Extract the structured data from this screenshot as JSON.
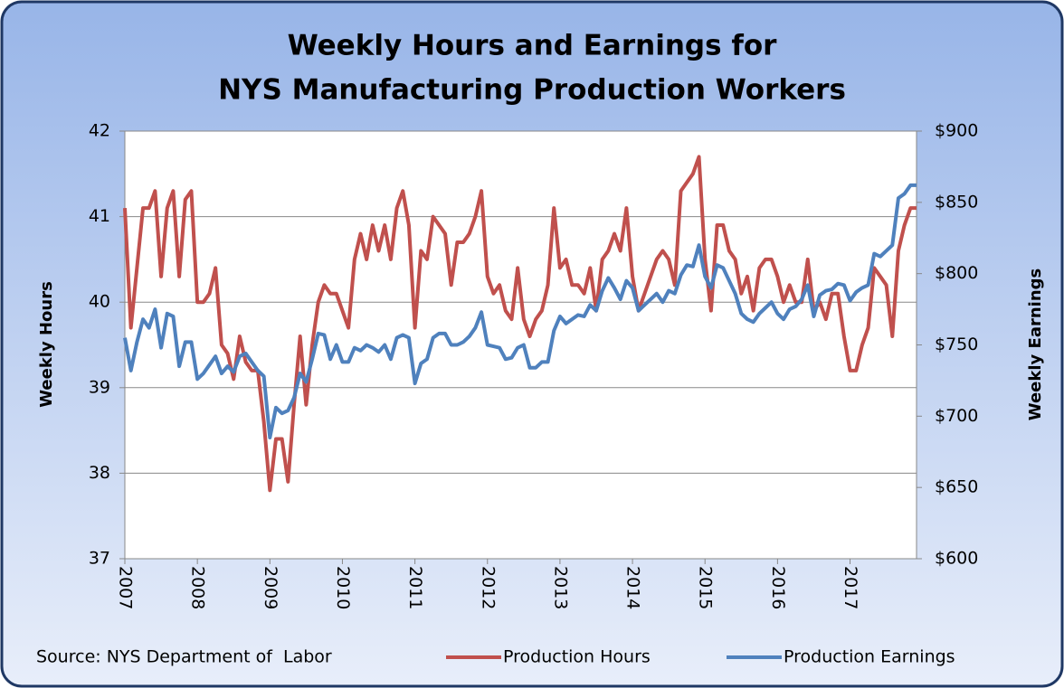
{
  "chart_data": {
    "type": "line",
    "title": [
      "Weekly Hours and Earnings for",
      "NYS Manufacturing Production Workers"
    ],
    "y_label": "Weekly Hours",
    "y2_label": "Weekly Earnings",
    "source": "Source: NYS Department of  Labor",
    "legend": "bottom",
    "grid": true,
    "categories": [
      "2007",
      null,
      null,
      null,
      null,
      null,
      null,
      null,
      null,
      null,
      null,
      null,
      "2008",
      null,
      null,
      null,
      null,
      null,
      null,
      null,
      null,
      null,
      null,
      null,
      "2009",
      null,
      null,
      null,
      null,
      null,
      null,
      null,
      null,
      null,
      null,
      null,
      "2010",
      null,
      null,
      null,
      null,
      null,
      null,
      null,
      null,
      null,
      null,
      null,
      "2011",
      null,
      null,
      null,
      null,
      null,
      null,
      null,
      null,
      null,
      null,
      null,
      "2012",
      null,
      null,
      null,
      null,
      null,
      null,
      null,
      null,
      null,
      null,
      null,
      "2013",
      null,
      null,
      null,
      null,
      null,
      null,
      null,
      null,
      null,
      null,
      null,
      "2014",
      null,
      null,
      null,
      null,
      null,
      null,
      null,
      null,
      null,
      null,
      null,
      "2015",
      null,
      null,
      null,
      null,
      null,
      null,
      null,
      null,
      null,
      null,
      null,
      "2016",
      null,
      null,
      null,
      null,
      null,
      null,
      null,
      null,
      null,
      null,
      null,
      "2017",
      null,
      null,
      null,
      null,
      null,
      null,
      null,
      null,
      null,
      null,
      null
    ],
    "ylim": [
      37,
      42
    ],
    "yticks": [
      37,
      38,
      39,
      40,
      41,
      42
    ],
    "y2lim": [
      600,
      900
    ],
    "y2ticks": [
      {
        "value": 600,
        "label": "$600"
      },
      {
        "value": 650,
        "label": "$650"
      },
      {
        "value": 700,
        "label": "$700"
      },
      {
        "value": 750,
        "label": "$750"
      },
      {
        "value": 800,
        "label": "$800"
      },
      {
        "value": 850,
        "label": "$850"
      },
      {
        "value": 900,
        "label": "$900"
      }
    ],
    "series": [
      {
        "name": "Production Hours",
        "color": "#c0504d",
        "values": [
          41.1,
          39.7,
          40.4,
          41.1,
          41.1,
          41.3,
          40.3,
          41.1,
          41.3,
          40.3,
          41.2,
          41.3,
          40.0,
          40.0,
          40.1,
          40.4,
          39.5,
          39.4,
          39.1,
          39.6,
          39.3,
          39.2,
          39.2,
          38.6,
          37.8,
          38.4,
          38.4,
          37.9,
          38.8,
          39.6,
          38.8,
          39.5,
          40.0,
          40.2,
          40.1,
          40.1,
          39.9,
          39.7,
          40.5,
          40.8,
          40.5,
          40.9,
          40.6,
          40.9,
          40.5,
          41.1,
          41.3,
          40.9,
          39.7,
          40.6,
          40.5,
          41.0,
          40.9,
          40.8,
          40.2,
          40.7,
          40.7,
          40.8,
          41.0,
          41.3,
          40.3,
          40.1,
          40.2,
          39.9,
          39.8,
          40.4,
          39.8,
          39.6,
          39.8,
          39.9,
          40.2,
          41.1,
          40.4,
          40.5,
          40.2,
          40.2,
          40.1,
          40.4,
          39.9,
          40.5,
          40.6,
          40.8,
          40.6,
          41.1,
          40.3,
          39.9,
          40.1,
          40.3,
          40.5,
          40.6,
          40.5,
          40.2,
          41.3,
          41.4,
          41.5,
          41.7,
          40.5,
          39.9,
          40.9,
          40.9,
          40.6,
          40.5,
          40.1,
          40.3,
          39.9,
          40.4,
          40.5,
          40.5,
          40.3,
          40.0,
          40.2,
          40.0,
          40.0,
          40.5,
          39.9,
          40.0,
          39.8,
          40.1,
          40.1,
          39.6,
          39.2,
          39.2,
          39.5,
          39.7,
          40.4,
          40.3,
          40.2,
          39.6,
          40.6,
          40.9,
          41.1,
          41.1
        ]
      },
      {
        "name": "Production Earnings",
        "color": "#4f81bd",
        "axis": "y2",
        "values": [
          755,
          732,
          752,
          768,
          762,
          775,
          748,
          772,
          770,
          735,
          752,
          752,
          726,
          730,
          736,
          742,
          730,
          735,
          731,
          742,
          744,
          738,
          732,
          728,
          685,
          706,
          702,
          704,
          713,
          730,
          724,
          740,
          758,
          757,
          740,
          750,
          738,
          738,
          748,
          746,
          750,
          748,
          745,
          750,
          740,
          755,
          757,
          755,
          723,
          737,
          740,
          755,
          758,
          758,
          750,
          750,
          752,
          756,
          762,
          773,
          750,
          749,
          748,
          740,
          741,
          748,
          750,
          734,
          734,
          738,
          738,
          760,
          770,
          765,
          768,
          771,
          770,
          778,
          774,
          788,
          797,
          790,
          782,
          795,
          790,
          774,
          778,
          782,
          786,
          780,
          788,
          786,
          799,
          806,
          805,
          820,
          798,
          790,
          806,
          804,
          795,
          786,
          772,
          768,
          766,
          772,
          776,
          780,
          772,
          768,
          775,
          777,
          782,
          792,
          770,
          785,
          788,
          789,
          793,
          792,
          781,
          787,
          790,
          792,
          814,
          812,
          816,
          820,
          853,
          856,
          862,
          862
        ]
      }
    ]
  }
}
